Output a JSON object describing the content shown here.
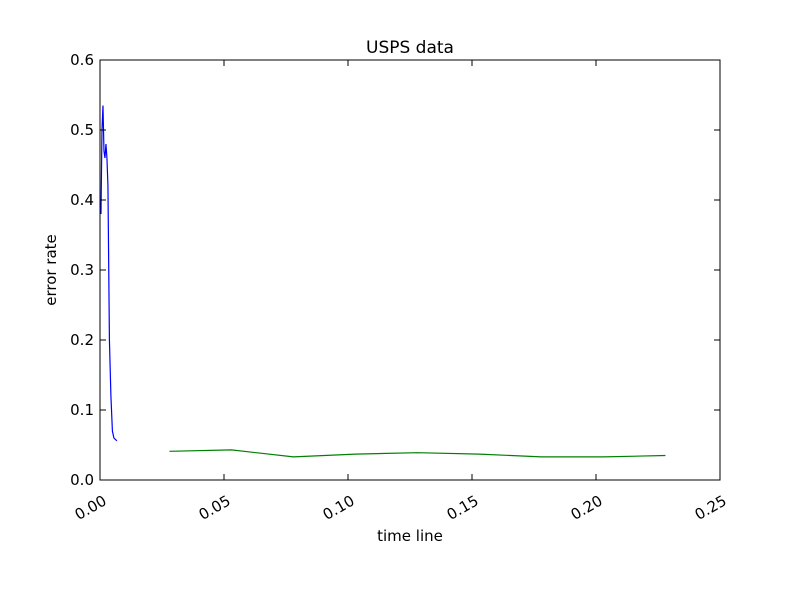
{
  "chart_data": {
    "type": "line",
    "title": "USPS data",
    "xlabel": "time line",
    "ylabel": "error rate",
    "xlim": [
      0.0,
      0.25
    ],
    "ylim": [
      0.0,
      0.6
    ],
    "grid": false,
    "x_ticks": [
      0.0,
      0.05,
      0.1,
      0.15,
      0.2,
      0.25
    ],
    "x_tick_labels": [
      "0.00",
      "0.05",
      "0.10",
      "0.15",
      "0.20",
      "0.25"
    ],
    "y_ticks": [
      0.0,
      0.1,
      0.2,
      0.3,
      0.4,
      0.5,
      0.6
    ],
    "y_tick_labels": [
      "0.0",
      "0.1",
      "0.2",
      "0.3",
      "0.4",
      "0.5",
      "0.6"
    ],
    "series": [
      {
        "name": "blue-series",
        "color": "#0000ff",
        "x": [
          0.0004,
          0.0008,
          0.0012,
          0.0016,
          0.002,
          0.0024,
          0.0028,
          0.0032,
          0.0038,
          0.0044,
          0.005,
          0.0056,
          0.0062,
          0.0068
        ],
        "y": [
          0.38,
          0.5,
          0.535,
          0.47,
          0.46,
          0.48,
          0.46,
          0.42,
          0.2,
          0.12,
          0.07,
          0.06,
          0.058,
          0.056
        ]
      },
      {
        "name": "green-series",
        "color": "#008000",
        "x": [
          0.028,
          0.053,
          0.078,
          0.103,
          0.128,
          0.153,
          0.178,
          0.203,
          0.228
        ],
        "y": [
          0.041,
          0.043,
          0.033,
          0.037,
          0.039,
          0.037,
          0.033,
          0.033,
          0.035
        ]
      }
    ]
  }
}
